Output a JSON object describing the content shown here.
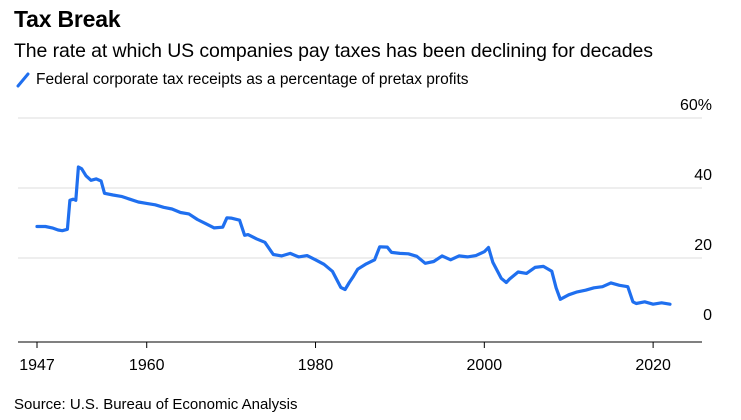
{
  "header": {
    "title": "Tax Break",
    "subtitle": "The rate at which US companies pay taxes has been declining for decades"
  },
  "legend": {
    "label": "Federal corporate tax receipts as a percentage of pretax profits",
    "color": "#1f6fef"
  },
  "footer": {
    "source": "Source: U.S. Bureau of Economic Analysis"
  },
  "chart_data": {
    "type": "line",
    "title": "Tax Break",
    "subtitle": "The rate at which US companies pay taxes has been declining for decades",
    "xlabel": "",
    "ylabel": "",
    "xlim": [
      1947,
      2022
    ],
    "ylim": [
      0,
      60
    ],
    "x_ticks": [
      {
        "value": 1947,
        "label": "1947"
      },
      {
        "value": 1960,
        "label": "1960"
      },
      {
        "value": 1980,
        "label": "1980"
      },
      {
        "value": 2000,
        "label": "2000"
      },
      {
        "value": 2020,
        "label": "2020"
      }
    ],
    "y_ticks": [
      {
        "value": 0,
        "label": "0"
      },
      {
        "value": 20,
        "label": "20"
      },
      {
        "value": 40,
        "label": "40"
      },
      {
        "value": 60,
        "label": "60%"
      }
    ],
    "grid": "horizontal",
    "legend_position": "top-left",
    "series": [
      {
        "name": "Federal corporate tax receipts as a percentage of pretax profits",
        "color": "#1f6fef",
        "points": [
          [
            1947.0,
            29.0
          ],
          [
            1948.0,
            29.0
          ],
          [
            1948.8,
            28.6
          ],
          [
            1949.5,
            28.0
          ],
          [
            1950.0,
            27.8
          ],
          [
            1950.6,
            28.2
          ],
          [
            1950.9,
            36.5
          ],
          [
            1951.3,
            36.8
          ],
          [
            1951.6,
            36.5
          ],
          [
            1951.9,
            46.0
          ],
          [
            1952.3,
            45.5
          ],
          [
            1952.8,
            43.5
          ],
          [
            1953.4,
            42.2
          ],
          [
            1954.0,
            42.6
          ],
          [
            1954.6,
            42.0
          ],
          [
            1955.0,
            38.5
          ],
          [
            1956.0,
            38.0
          ],
          [
            1957.0,
            37.6
          ],
          [
            1958.0,
            36.8
          ],
          [
            1959.0,
            36.0
          ],
          [
            1960.0,
            35.6
          ],
          [
            1961.0,
            35.2
          ],
          [
            1962.0,
            34.5
          ],
          [
            1963.0,
            34.0
          ],
          [
            1964.0,
            33.0
          ],
          [
            1965.0,
            32.6
          ],
          [
            1966.0,
            31.0
          ],
          [
            1967.0,
            29.8
          ],
          [
            1968.0,
            28.6
          ],
          [
            1969.0,
            28.8
          ],
          [
            1969.5,
            31.5
          ],
          [
            1970.0,
            31.4
          ],
          [
            1971.0,
            30.8
          ],
          [
            1971.6,
            26.5
          ],
          [
            1972.0,
            26.7
          ],
          [
            1973.0,
            25.5
          ],
          [
            1974.0,
            24.5
          ],
          [
            1975.0,
            21.0
          ],
          [
            1976.0,
            20.6
          ],
          [
            1977.0,
            21.3
          ],
          [
            1978.0,
            20.3
          ],
          [
            1979.0,
            20.7
          ],
          [
            1980.0,
            19.5
          ],
          [
            1981.0,
            18.2
          ],
          [
            1982.0,
            16.2
          ],
          [
            1983.0,
            11.6
          ],
          [
            1983.5,
            11.0
          ],
          [
            1984.0,
            13.0
          ],
          [
            1984.5,
            14.8
          ],
          [
            1985.0,
            16.8
          ],
          [
            1986.0,
            18.3
          ],
          [
            1987.0,
            19.5
          ],
          [
            1987.6,
            23.2
          ],
          [
            1988.5,
            23.1
          ],
          [
            1989.0,
            21.6
          ],
          [
            1990.0,
            21.3
          ],
          [
            1991.0,
            21.2
          ],
          [
            1992.0,
            20.5
          ],
          [
            1993.0,
            18.5
          ],
          [
            1994.0,
            19.0
          ],
          [
            1995.0,
            20.6
          ],
          [
            1996.0,
            19.5
          ],
          [
            1997.0,
            20.6
          ],
          [
            1998.0,
            20.3
          ],
          [
            1999.0,
            20.7
          ],
          [
            2000.0,
            21.8
          ],
          [
            2000.5,
            23.0
          ],
          [
            2001.0,
            18.8
          ],
          [
            2002.0,
            14.2
          ],
          [
            2002.6,
            13.0
          ],
          [
            2003.0,
            14.0
          ],
          [
            2004.0,
            16.0
          ],
          [
            2005.0,
            15.6
          ],
          [
            2006.0,
            17.3
          ],
          [
            2007.0,
            17.6
          ],
          [
            2008.0,
            16.2
          ],
          [
            2008.5,
            11.5
          ],
          [
            2009.0,
            8.2
          ],
          [
            2010.0,
            9.5
          ],
          [
            2011.0,
            10.3
          ],
          [
            2012.0,
            10.8
          ],
          [
            2013.0,
            11.5
          ],
          [
            2014.0,
            11.8
          ],
          [
            2015.0,
            12.9
          ],
          [
            2016.0,
            12.2
          ],
          [
            2017.0,
            11.8
          ],
          [
            2017.6,
            7.5
          ],
          [
            2018.0,
            7.0
          ],
          [
            2019.0,
            7.5
          ],
          [
            2020.0,
            6.8
          ],
          [
            2021.0,
            7.2
          ],
          [
            2022.0,
            6.8
          ]
        ]
      }
    ]
  }
}
